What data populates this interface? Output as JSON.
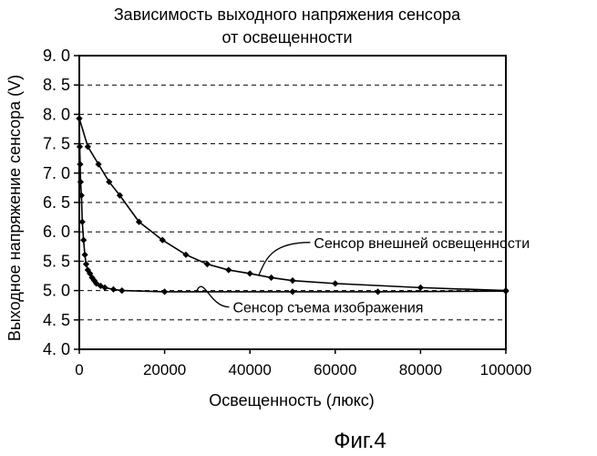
{
  "chart_data": {
    "type": "line",
    "title_line1": "Зависимость выходного напряжения сенсора",
    "title_line2": "от освещенности",
    "xlabel": "Освещенность (люкс)",
    "ylabel": "Выходное напряжение сенсора (V)",
    "figure_label": "Фиг.4",
    "xlim": [
      0,
      100000
    ],
    "ylim": [
      4.0,
      9.0
    ],
    "x_ticks": [
      "0",
      "20000",
      "40000",
      "60000",
      "80000",
      "100000"
    ],
    "x_tick_values": [
      0,
      20000,
      40000,
      60000,
      80000,
      100000
    ],
    "y_ticks": [
      "4. 0",
      "4. 5",
      "5. 0",
      "5. 5",
      "6. 0",
      "6. 5",
      "7. 0",
      "7. 5",
      "8. 0",
      "8. 5",
      "9. 0"
    ],
    "y_tick_values": [
      4.0,
      4.5,
      5.0,
      5.5,
      6.0,
      6.5,
      7.0,
      7.5,
      8.0,
      8.5,
      9.0
    ],
    "grid": "dashed horizontal",
    "line_color": "#000000",
    "series": [
      {
        "name": "Сенсор внешней освещенности",
        "x": [
          0,
          2000,
          4500,
          7000,
          9500,
          14000,
          19500,
          25000,
          30000,
          35000,
          40000,
          45000,
          50000,
          60000,
          80000,
          100000
        ],
        "y": [
          7.93,
          7.45,
          7.15,
          6.85,
          6.62,
          6.17,
          5.86,
          5.61,
          5.45,
          5.35,
          5.29,
          5.22,
          5.17,
          5.12,
          5.05,
          5.0
        ]
      },
      {
        "name": "Сенсор съема изображения",
        "x": [
          0,
          100,
          200,
          300,
          500,
          700,
          1000,
          1300,
          1600,
          2000,
          2500,
          3000,
          3500,
          4000,
          5000,
          6000,
          8000,
          10000,
          20000,
          50000,
          70000,
          100000
        ],
        "y": [
          7.93,
          7.45,
          7.15,
          6.85,
          6.62,
          6.17,
          5.86,
          5.61,
          5.45,
          5.35,
          5.29,
          5.22,
          5.17,
          5.12,
          5.08,
          5.05,
          5.02,
          5.0,
          4.98,
          4.98,
          4.98,
          4.99
        ]
      }
    ],
    "annotations": [
      {
        "text": "Сенсор внешней освещенности",
        "series": 0
      },
      {
        "text": "Сенсор съема изображения",
        "series": 1
      }
    ]
  }
}
